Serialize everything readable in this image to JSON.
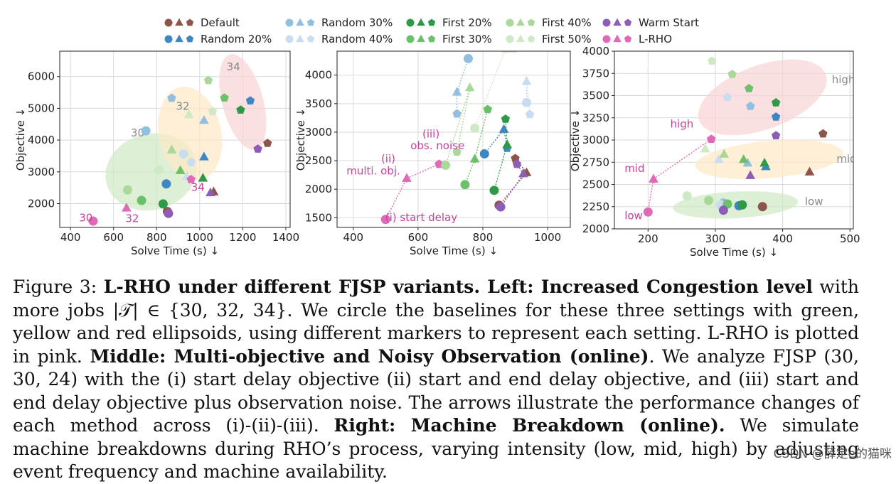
{
  "colors": {
    "Default": "#8c564b",
    "Random 20%": "#3d88c4",
    "Random 30%": "#92bfe0",
    "Random 40%": "#c8dcf2",
    "First 20%": "#2e9a48",
    "First 30%": "#6cc06a",
    "First 40%": "#a9d89a",
    "First 50%": "#cfe9c4",
    "Warm Start": "#8e5db8",
    "L-RHO": "#e069b8"
  },
  "legend": [
    "Default",
    "Random 20%",
    "Random 30%",
    "Random 40%",
    "First 20%",
    "First 30%",
    "First 40%",
    "First 50%",
    "Warm Start",
    "L-RHO"
  ],
  "chart_data": [
    {
      "type": "scatter",
      "xlabel": "Solve Time (s) ↓",
      "ylabel": "Objective ↓",
      "xlim": [
        350,
        1420
      ],
      "ylim": [
        1250,
        6800
      ],
      "xticks": [
        400,
        600,
        800,
        1000,
        1200,
        1400
      ],
      "yticks": [
        2000,
        3000,
        4000,
        5000,
        6000
      ],
      "ellipses": [
        {
          "label": "30",
          "label_x": 680,
          "label_y": 4120,
          "cx": 775,
          "cy": 3000,
          "rx": 215,
          "ry": 1200,
          "rot": -15,
          "color": "#cfe9c4"
        },
        {
          "label": "32",
          "label_x": 890,
          "label_y": 4950,
          "cx": 955,
          "cy": 4200,
          "rx": 145,
          "ry": 1500,
          "rot": -12,
          "color": "#fde8c4"
        },
        {
          "label": "34",
          "label_x": 1125,
          "label_y": 6200,
          "cx": 1200,
          "cy": 5200,
          "rx": 95,
          "ry": 1550,
          "rot": -15,
          "color": "#f9d3d6"
        }
      ],
      "markers": [
        "circle",
        "triangle",
        "pentagon"
      ],
      "points": [
        {
          "method": "Default",
          "setting": "30",
          "x": 850,
          "y": 1750
        },
        {
          "method": "Default",
          "setting": "32",
          "x": 1065,
          "y": 2370
        },
        {
          "method": "Default",
          "setting": "34",
          "x": 1315,
          "y": 3900
        },
        {
          "method": "Random 20%",
          "setting": "30",
          "x": 845,
          "y": 2620
        },
        {
          "method": "Random 20%",
          "setting": "32",
          "x": 1020,
          "y": 3470
        },
        {
          "method": "Random 20%",
          "setting": "34",
          "x": 1235,
          "y": 5240
        },
        {
          "method": "Random 30%",
          "setting": "30",
          "x": 750,
          "y": 4290
        },
        {
          "method": "Random 30%",
          "setting": "32",
          "x": 1020,
          "y": 4620
        },
        {
          "method": "Random 30%",
          "setting": "34",
          "x": 870,
          "y": 5320
        },
        {
          "method": "Random 40%",
          "setting": "30",
          "x": 925,
          "y": 3560
        },
        {
          "method": "Random 40%",
          "setting": "32",
          "x": 940,
          "y": 2850
        },
        {
          "method": "Random 40%",
          "setting": "34",
          "x": 960,
          "y": 3300
        },
        {
          "method": "First 20%",
          "setting": "30",
          "x": 830,
          "y": 1990
        },
        {
          "method": "First 20%",
          "setting": "32",
          "x": 1015,
          "y": 2800
        },
        {
          "method": "First 20%",
          "setting": "34",
          "x": 1190,
          "y": 4950
        },
        {
          "method": "First 30%",
          "setting": "30",
          "x": 730,
          "y": 2100
        },
        {
          "method": "First 30%",
          "setting": "32",
          "x": 910,
          "y": 3040
        },
        {
          "method": "First 30%",
          "setting": "34",
          "x": 1115,
          "y": 5330
        },
        {
          "method": "First 40%",
          "setting": "30",
          "x": 665,
          "y": 2430
        },
        {
          "method": "First 40%",
          "setting": "32",
          "x": 870,
          "y": 3690
        },
        {
          "method": "First 40%",
          "setting": "34",
          "x": 1040,
          "y": 5880
        },
        {
          "method": "First 50%",
          "setting": "30",
          "x": 810,
          "y": 3060
        },
        {
          "method": "First 50%",
          "setting": "32",
          "x": 950,
          "y": 4800
        },
        {
          "method": "First 50%",
          "setting": "34",
          "x": 1060,
          "y": 4900
        },
        {
          "method": "Warm Start",
          "setting": "30",
          "x": 855,
          "y": 1690
        },
        {
          "method": "Warm Start",
          "setting": "32",
          "x": 1050,
          "y": 2340
        },
        {
          "method": "Warm Start",
          "setting": "34",
          "x": 1270,
          "y": 3720
        },
        {
          "method": "L-RHO",
          "setting": "30",
          "x": 505,
          "y": 1450
        },
        {
          "method": "L-RHO",
          "setting": "32",
          "x": 660,
          "y": 1860
        },
        {
          "method": "L-RHO",
          "setting": "34",
          "x": 960,
          "y": 2760
        }
      ],
      "point_labels": [
        {
          "text": "30",
          "x": 440,
          "y": 1440
        },
        {
          "text": "32",
          "x": 655,
          "y": 1420
        },
        {
          "text": "34",
          "x": 960,
          "y": 2400
        }
      ]
    },
    {
      "type": "scatter",
      "xlabel": "Solve Time (s) ↓",
      "ylabel": "Objective ↓",
      "xlim": [
        350,
        1070
      ],
      "ylim": [
        1330,
        4420
      ],
      "xticks": [
        400,
        600,
        800,
        1000
      ],
      "yticks": [
        1500,
        2000,
        2500,
        3000,
        3500,
        4000
      ],
      "annotations": [
        {
          "text": "(i) start delay",
          "x": 610,
          "y": 1440
        },
        {
          "text": "(ii)",
          "x": 508,
          "y": 2470
        },
        {
          "text": "multi. obj.",
          "x": 462,
          "y": 2260
        },
        {
          "text": "(iii)",
          "x": 640,
          "y": 2905
        },
        {
          "text": "obs. noise",
          "x": 660,
          "y": 2700
        }
      ],
      "trajectories": [
        {
          "method": "L-RHO",
          "points": [
            [
              500,
              1470
            ],
            [
              565,
              2190
            ],
            [
              665,
              2440
            ]
          ]
        },
        {
          "method": "Random 20%",
          "points": [
            [
              805,
              2620
            ],
            [
              865,
              3050
            ],
            [
              875,
              2720
            ]
          ]
        },
        {
          "method": "Random 30%",
          "points": [
            [
              755,
              4290
            ],
            [
              720,
              3700
            ],
            [
              720,
              3320
            ]
          ]
        },
        {
          "method": "Random 40%",
          "points": [
            [
              935,
              3520
            ],
            [
              935,
              3890
            ],
            [
              945,
              3310
            ]
          ]
        },
        {
          "method": "First 20%",
          "points": [
            [
              835,
              1980
            ],
            [
              875,
              2780
            ],
            [
              870,
              3230
            ]
          ]
        },
        {
          "method": "First 30%",
          "points": [
            [
              745,
              2080
            ],
            [
              775,
              2530
            ],
            [
              815,
              3400
            ]
          ]
        },
        {
          "method": "First 40%",
          "points": [
            [
              685,
              2420
            ],
            [
              760,
              3780
            ],
            [
              720,
              2650
            ]
          ]
        },
        {
          "method": "First 50%",
          "points": [
            [
              775,
              3070
            ],
            [
              870,
              4460
            ],
            [
              895,
              4460
            ]
          ]
        },
        {
          "method": "Default",
          "points": [
            [
              850,
              1720
            ],
            [
              935,
              2290
            ],
            [
              900,
              2540
            ]
          ]
        },
        {
          "method": "Warm Start",
          "points": [
            [
              855,
              1690
            ],
            [
              925,
              2270
            ],
            [
              905,
              2440
            ]
          ]
        }
      ]
    },
    {
      "type": "scatter",
      "xlabel": "Solve Time (s) ↓",
      "ylabel": "Objective ↓",
      "xlim": [
        150,
        505
      ],
      "ylim": [
        2000,
        4000
      ],
      "xticks": [
        200,
        300,
        400,
        500
      ],
      "yticks": [
        2000,
        2250,
        2500,
        2750,
        3000,
        3250,
        3500,
        3750,
        4000
      ],
      "ellipses": [
        {
          "label": "low",
          "label_x": 433,
          "label_y": 2270,
          "cx": 330,
          "cy": 2270,
          "rx": 93,
          "ry": 150,
          "rot": -3,
          "color": "#cfe9c4"
        },
        {
          "label": "mid",
          "label_x": 480,
          "label_y": 2750,
          "cx": 380,
          "cy": 2780,
          "rx": 110,
          "ry": 210,
          "rot": -5,
          "color": "#fde8c4"
        },
        {
          "label": "high",
          "label_x": 473,
          "label_y": 3640,
          "cx": 370,
          "cy": 3480,
          "rx": 100,
          "ry": 360,
          "rot": -20,
          "color": "#f9d3d6"
        }
      ],
      "markers": [
        "circle",
        "triangle",
        "pentagon"
      ],
      "points": [
        {
          "method": "Default",
          "setting": "low",
          "x": 370,
          "y": 2250
        },
        {
          "method": "Default",
          "setting": "mid",
          "x": 440,
          "y": 2640
        },
        {
          "method": "Default",
          "setting": "high",
          "x": 460,
          "y": 3070
        },
        {
          "method": "Random 20%",
          "setting": "low",
          "x": 335,
          "y": 2260
        },
        {
          "method": "Random 20%",
          "setting": "mid",
          "x": 375,
          "y": 2700
        },
        {
          "method": "Random 20%",
          "setting": "high",
          "x": 390,
          "y": 3260
        },
        {
          "method": "Random 30%",
          "setting": "low",
          "x": 312,
          "y": 2290
        },
        {
          "method": "Random 30%",
          "setting": "mid",
          "x": 348,
          "y": 2740
        },
        {
          "method": "Random 30%",
          "setting": "high",
          "x": 352,
          "y": 3380
        },
        {
          "method": "Random 40%",
          "setting": "low",
          "x": 308,
          "y": 2270
        },
        {
          "method": "Random 40%",
          "setting": "mid",
          "x": 305,
          "y": 2780
        },
        {
          "method": "Random 40%",
          "setting": "high",
          "x": 318,
          "y": 3480
        },
        {
          "method": "First 20%",
          "setting": "low",
          "x": 340,
          "y": 2270
        },
        {
          "method": "First 20%",
          "setting": "mid",
          "x": 373,
          "y": 2740
        },
        {
          "method": "First 20%",
          "setting": "high",
          "x": 390,
          "y": 3420
        },
        {
          "method": "First 30%",
          "setting": "low",
          "x": 318,
          "y": 2280
        },
        {
          "method": "First 30%",
          "setting": "mid",
          "x": 342,
          "y": 2780
        },
        {
          "method": "First 30%",
          "setting": "high",
          "x": 350,
          "y": 3580
        },
        {
          "method": "First 40%",
          "setting": "low",
          "x": 290,
          "y": 2320
        },
        {
          "method": "First 40%",
          "setting": "mid",
          "x": 313,
          "y": 2840
        },
        {
          "method": "First 40%",
          "setting": "high",
          "x": 325,
          "y": 3740
        },
        {
          "method": "First 50%",
          "setting": "low",
          "x": 258,
          "y": 2370
        },
        {
          "method": "First 50%",
          "setting": "mid",
          "x": 285,
          "y": 2900
        },
        {
          "method": "First 50%",
          "setting": "high",
          "x": 295,
          "y": 3890
        },
        {
          "method": "Warm Start",
          "setting": "low",
          "x": 312,
          "y": 2210
        },
        {
          "method": "Warm Start",
          "setting": "mid",
          "x": 352,
          "y": 2600
        },
        {
          "method": "Warm Start",
          "setting": "high",
          "x": 390,
          "y": 3050
        },
        {
          "method": "L-RHO",
          "setting": "low",
          "x": 200,
          "y": 2190
        },
        {
          "method": "L-RHO",
          "setting": "mid",
          "x": 208,
          "y": 2560
        },
        {
          "method": "L-RHO",
          "setting": "high",
          "x": 294,
          "y": 3010
        }
      ],
      "point_labels": [
        {
          "text": "low",
          "x": 165,
          "y": 2110
        },
        {
          "text": "mid",
          "x": 165,
          "y": 2640
        },
        {
          "text": "high",
          "x": 233,
          "y": 3140
        }
      ],
      "arrows": [
        [
          [
            200,
            2190
          ],
          [
            208,
            2560
          ]
        ],
        [
          [
            208,
            2560
          ],
          [
            294,
            3010
          ]
        ]
      ]
    }
  ],
  "caption": {
    "fig_label": "Figure 3: ",
    "title": "L-RHO under different FJSP variants. ",
    "left_head": "Left: Increased Congestion level",
    "left_text": " with more jobs |𝒯| ∈ {30, 32, 34}. We circle the baselines for these three settings with green, yellow and red ellipsoids, using different markers to represent each setting. L-RHO is plotted in pink. ",
    "middle_head": "Middle: Multi-objective and Noisy Observation (online)",
    "middle_text": ". We analyze FJSP (30, 30, 24) with the (i) start delay objective (ii) start and end delay objective, and (iii) start and end delay objective plus observation noise. The arrows illustrate the performance changes of each method across (i)-(ii)-(iii). ",
    "right_head": "Right: Machine Breakdown (online).",
    "right_text": " We simulate machine breakdowns during RHO’s process, varying intensity (low, mid, high) by adjusting event frequency and machine availability."
  },
  "watermark": "CSDN @薛定e的猫咪"
}
